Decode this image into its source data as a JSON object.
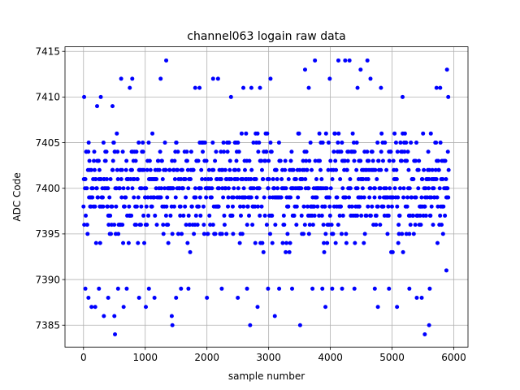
{
  "chart_data": {
    "type": "scatter",
    "title": "channel063 logain raw data",
    "xlabel": "sample number",
    "ylabel": "ADC Code",
    "xlim": [
      -300,
      6230
    ],
    "ylim": [
      7382.6,
      7415.5
    ],
    "xticks": [
      0,
      1000,
      2000,
      3000,
      4000,
      5000,
      6000
    ],
    "yticks": [
      7385,
      7390,
      7395,
      7400,
      7405,
      7410,
      7415
    ],
    "xtick_labels": [
      "0",
      "1000",
      "2000",
      "3000",
      "4000",
      "5000",
      "6000"
    ],
    "ytick_labels": [
      "7385",
      "7390",
      "7395",
      "7400",
      "7405",
      "7410",
      "7415"
    ],
    "grid": true,
    "marker_color": "#0000ff",
    "sample_range": [
      0,
      5920
    ],
    "dense_band": [
      7393,
      7406
    ],
    "outliers": [
      [
        10,
        7410
      ],
      [
        30,
        7389
      ],
      [
        80,
        7388
      ],
      [
        130,
        7387
      ],
      [
        190,
        7387
      ],
      [
        220,
        7409
      ],
      [
        250,
        7389
      ],
      [
        280,
        7410
      ],
      [
        330,
        7386
      ],
      [
        400,
        7388
      ],
      [
        470,
        7409
      ],
      [
        500,
        7386
      ],
      [
        510,
        7384
      ],
      [
        560,
        7389
      ],
      [
        610,
        7412
      ],
      [
        650,
        7387
      ],
      [
        700,
        7389
      ],
      [
        750,
        7411
      ],
      [
        790,
        7412
      ],
      [
        900,
        7388
      ],
      [
        1010,
        7387
      ],
      [
        1060,
        7389
      ],
      [
        1150,
        7388
      ],
      [
        1250,
        7412
      ],
      [
        1340,
        7414
      ],
      [
        1430,
        7386
      ],
      [
        1440,
        7385
      ],
      [
        1500,
        7388
      ],
      [
        1580,
        7389
      ],
      [
        1700,
        7389
      ],
      [
        1810,
        7411
      ],
      [
        1880,
        7411
      ],
      [
        2000,
        7388
      ],
      [
        2100,
        7412
      ],
      [
        2180,
        7412
      ],
      [
        2240,
        7389
      ],
      [
        2390,
        7410
      ],
      [
        2500,
        7388
      ],
      [
        2590,
        7411
      ],
      [
        2650,
        7389
      ],
      [
        2700,
        7385
      ],
      [
        2720,
        7411
      ],
      [
        2820,
        7387
      ],
      [
        2860,
        7411
      ],
      [
        2990,
        7389
      ],
      [
        3030,
        7412
      ],
      [
        3100,
        7386
      ],
      [
        3170,
        7389
      ],
      [
        3380,
        7389
      ],
      [
        3510,
        7385
      ],
      [
        3590,
        7413
      ],
      [
        3650,
        7411
      ],
      [
        3710,
        7389
      ],
      [
        3750,
        7414
      ],
      [
        3870,
        7389
      ],
      [
        3920,
        7387
      ],
      [
        3990,
        7412
      ],
      [
        4030,
        7389
      ],
      [
        4130,
        7414
      ],
      [
        4190,
        7389
      ],
      [
        4240,
        7414
      ],
      [
        4310,
        7414
      ],
      [
        4390,
        7389
      ],
      [
        4440,
        7411
      ],
      [
        4490,
        7413
      ],
      [
        4600,
        7414
      ],
      [
        4650,
        7412
      ],
      [
        4720,
        7389
      ],
      [
        4770,
        7387
      ],
      [
        4820,
        7411
      ],
      [
        4950,
        7389
      ],
      [
        5080,
        7387
      ],
      [
        5170,
        7410
      ],
      [
        5280,
        7389
      ],
      [
        5400,
        7388
      ],
      [
        5480,
        7388
      ],
      [
        5530,
        7384
      ],
      [
        5600,
        7385
      ],
      [
        5610,
        7389
      ],
      [
        5720,
        7411
      ],
      [
        5780,
        7411
      ],
      [
        5880,
        7391
      ],
      [
        5890,
        7413
      ],
      [
        5910,
        7410
      ]
    ]
  }
}
